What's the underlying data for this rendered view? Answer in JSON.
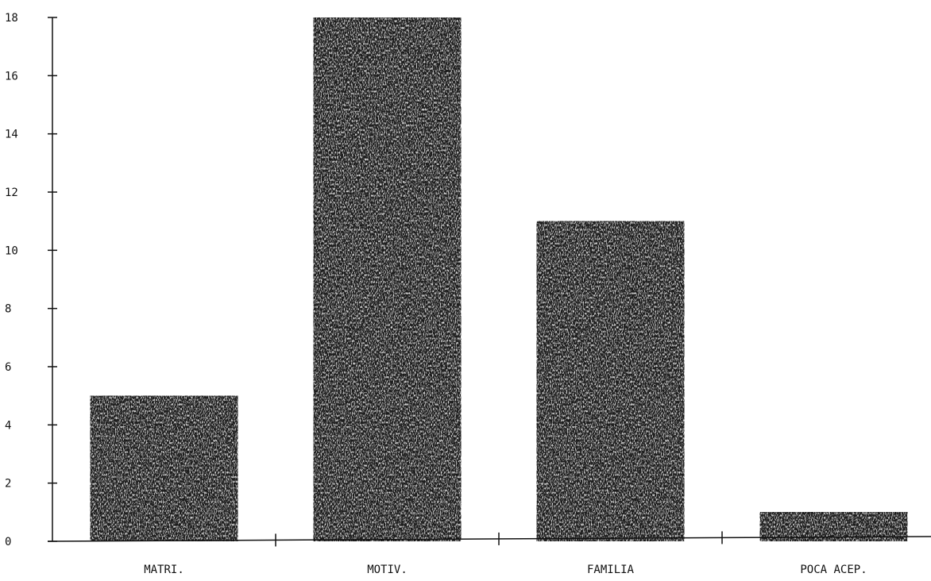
{
  "chart_data": {
    "type": "bar",
    "title": "",
    "xlabel": "",
    "ylabel": "",
    "categories": [
      "MATRI.",
      "MOTIV.",
      "FAMILIA",
      "POCA ACEP."
    ],
    "values": [
      5,
      18,
      11,
      1
    ],
    "ylim": [
      0,
      18
    ],
    "yticks": [
      "0",
      "2",
      "4",
      "6",
      "8",
      "10",
      "12",
      "14",
      "16",
      "18"
    ],
    "grid": false,
    "legend": "none",
    "colors": {
      "bar": "#1a1a1a",
      "bar_speckle": "#d8d8d8",
      "axis": "#111111",
      "background": "#ffffff"
    }
  }
}
